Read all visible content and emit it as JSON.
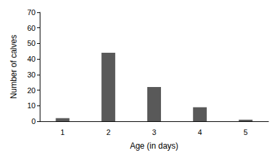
{
  "chart_data": {
    "type": "bar",
    "x_label": "Age (in days)",
    "y_label": "Number of calves",
    "categories": [
      "1",
      "2",
      "3",
      "4",
      "5"
    ],
    "values": [
      2,
      44,
      22,
      9,
      1
    ],
    "color": "#595959",
    "ylim": [
      0,
      70
    ],
    "yticks": [
      0,
      10,
      20,
      30,
      40,
      50,
      60,
      70
    ],
    "grid": false
  }
}
